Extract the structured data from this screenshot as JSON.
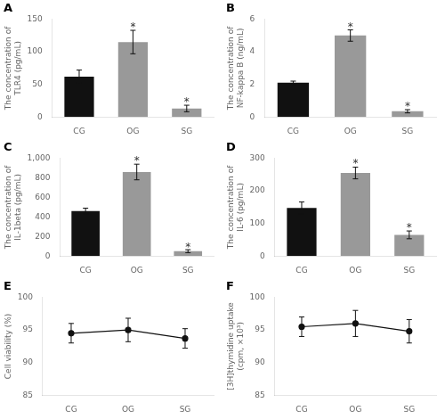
{
  "chart_data": [
    {
      "type": "bar",
      "title": "A",
      "categories": [
        "CG",
        "OG",
        "SG"
      ],
      "values": [
        62,
        115,
        13
      ],
      "errors": [
        10,
        18,
        5
      ],
      "colors": [
        "#111111",
        "#999999",
        "#999999"
      ],
      "ylabel": "The concentration of\nTLR4 (pg/mL)",
      "ylim": [
        0,
        150
      ],
      "yticks": [
        0,
        50,
        100,
        150
      ],
      "grid": false,
      "annotations": [
        {
          "text": "*",
          "x": "OG",
          "y": 134
        },
        {
          "text": "*",
          "x": "SG",
          "y": 19
        }
      ]
    },
    {
      "type": "bar",
      "title": "B",
      "categories": [
        "CG",
        "OG",
        "SG"
      ],
      "values": [
        2.1,
        5.0,
        0.35
      ],
      "errors": [
        0.1,
        0.35,
        0.1
      ],
      "colors": [
        "#111111",
        "#999999",
        "#999999"
      ],
      "ylabel": "The concentration of\nNF-kappa B (ng/mL)",
      "ylim": [
        0,
        6
      ],
      "yticks": [
        0,
        2,
        4,
        6
      ],
      "grid": false,
      "annotations": [
        {
          "text": "*",
          "x": "OG",
          "y": 5.38
        },
        {
          "text": "*",
          "x": "SG",
          "y": 0.5
        }
      ]
    },
    {
      "type": "bar",
      "title": "C",
      "categories": [
        "CG",
        "OG",
        "SG"
      ],
      "values": [
        460,
        860,
        50
      ],
      "errors": [
        30,
        80,
        15
      ],
      "colors": [
        "#111111",
        "#999999",
        "#999999"
      ],
      "ylabel": "The concentration of\nIL-1beta (pg/mL)",
      "ylim": [
        0,
        1000
      ],
      "yticks": [
        0,
        200,
        400,
        600,
        800,
        {
          "value": 1000,
          "label": "1,000"
        }
      ],
      "grid": false,
      "annotations": [
        {
          "text": "*",
          "x": "OG",
          "y": 950
        },
        {
          "text": "*",
          "x": "SG",
          "y": 70
        }
      ]
    },
    {
      "type": "bar",
      "title": "D",
      "categories": [
        "CG",
        "OG",
        "SG"
      ],
      "values": [
        148,
        255,
        65
      ],
      "errors": [
        18,
        18,
        12
      ],
      "colors": [
        "#111111",
        "#999999",
        "#999999"
      ],
      "ylabel": "The concentration of\nIL-6 (pg/mL)",
      "ylim": [
        0,
        300
      ],
      "yticks": [
        0,
        100,
        200,
        300
      ],
      "grid": false,
      "annotations": [
        {
          "text": "*",
          "x": "OG",
          "y": 276
        },
        {
          "text": "*",
          "x": "SG",
          "y": 80
        }
      ]
    },
    {
      "type": "line",
      "title": "E",
      "categories": [
        "CG",
        "OG",
        "SG"
      ],
      "values": [
        94.5,
        95.0,
        93.7
      ],
      "errors": [
        1.5,
        1.8,
        1.5
      ],
      "color": "#111111",
      "marker": "circle",
      "ylabel": "Cell viability (%)",
      "ylim": [
        85,
        100
      ],
      "yticks": [
        85,
        90,
        95,
        100
      ],
      "grid": false
    },
    {
      "type": "line",
      "title": "F",
      "categories": [
        "CG",
        "OG",
        "SG"
      ],
      "values": [
        95.5,
        96.0,
        94.8
      ],
      "errors": [
        1.5,
        2.0,
        1.8
      ],
      "color": "#111111",
      "marker": "circle",
      "ylabel": "[3H]thymidine uptake\n(cpm, ×10³)",
      "ylim": [
        85,
        100
      ],
      "yticks": [
        85,
        90,
        95,
        100
      ],
      "grid": false
    }
  ]
}
